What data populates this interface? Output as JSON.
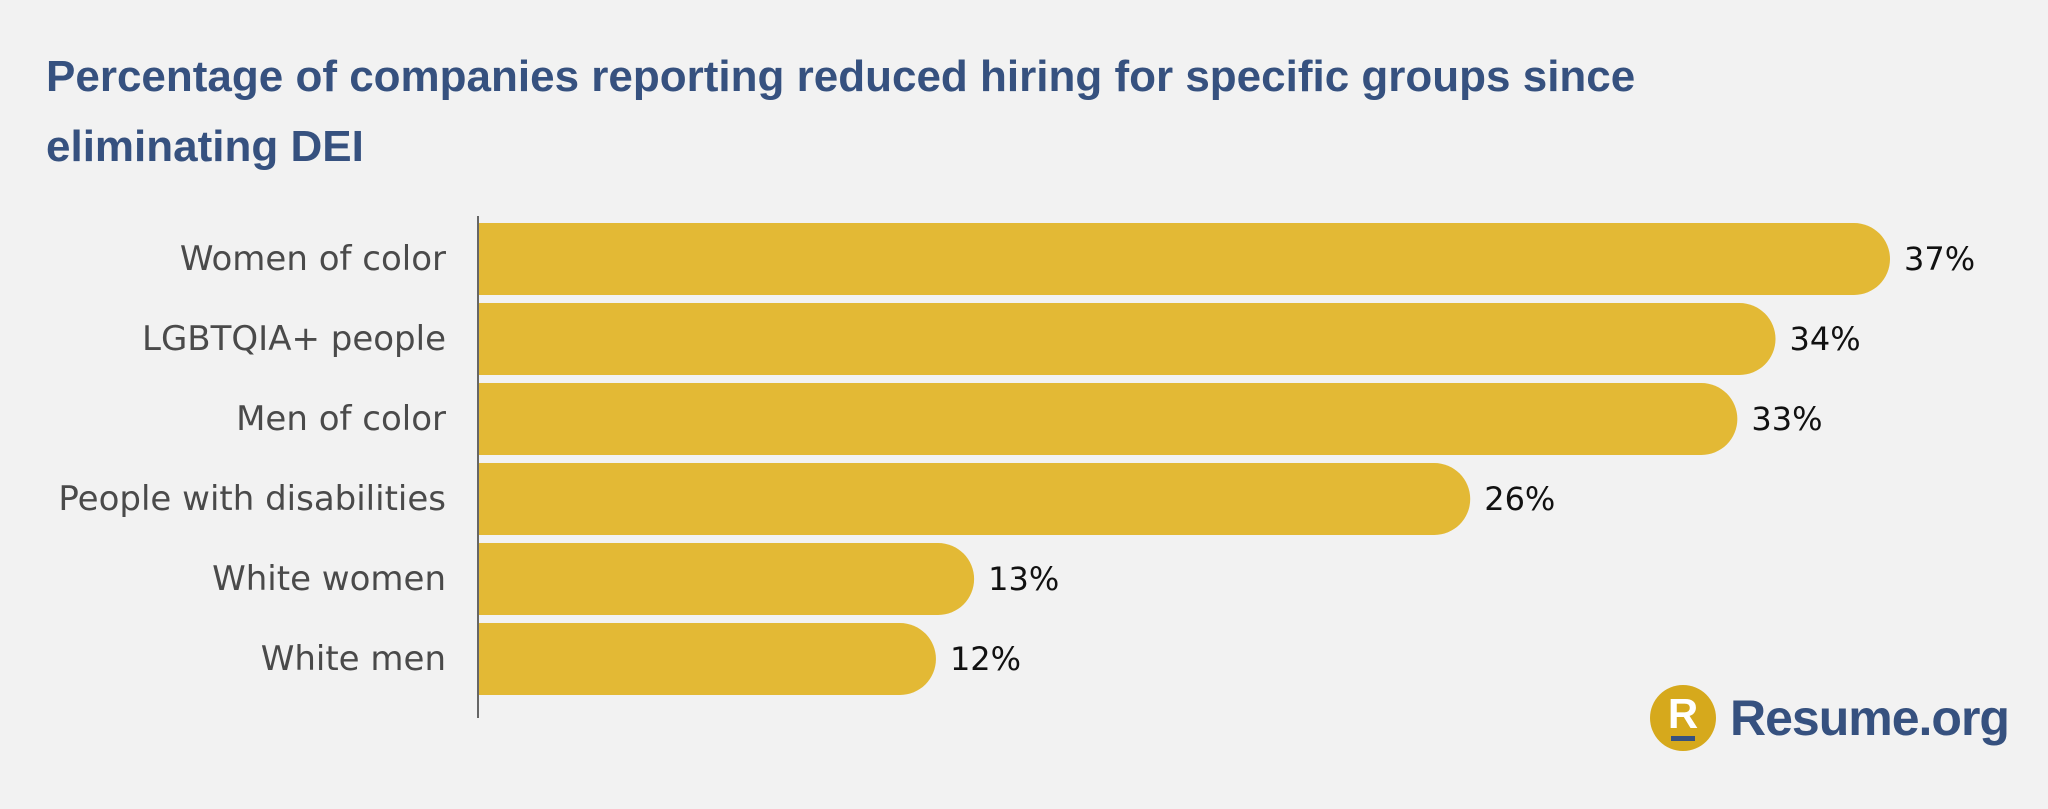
{
  "chart_data": {
    "type": "bar",
    "orientation": "horizontal",
    "title": "Percentage of companies reporting reduced hiring for specific groups since eliminating DEI",
    "categories": [
      "Women of color",
      "LGBTQIA+ people",
      "Men of color",
      "People with disabilities",
      "White women",
      "White men"
    ],
    "values": [
      37,
      34,
      33,
      26,
      13,
      12
    ],
    "value_labels": [
      "37%",
      "34%",
      "33%",
      "26%",
      "13%",
      "12%"
    ],
    "xlabel": "",
    "ylabel": "",
    "unit": "%",
    "xlim": [
      0,
      37
    ],
    "grid": false,
    "legend": "none",
    "colors": {
      "bar": "#e3b935",
      "title": "#36517f",
      "axis": "#666666",
      "background": "#f2f2f2"
    }
  },
  "branding": {
    "logo_letter": "R",
    "logo_text": "Resume.org",
    "logo_color": "#d6a91c",
    "text_color": "#36517f"
  }
}
